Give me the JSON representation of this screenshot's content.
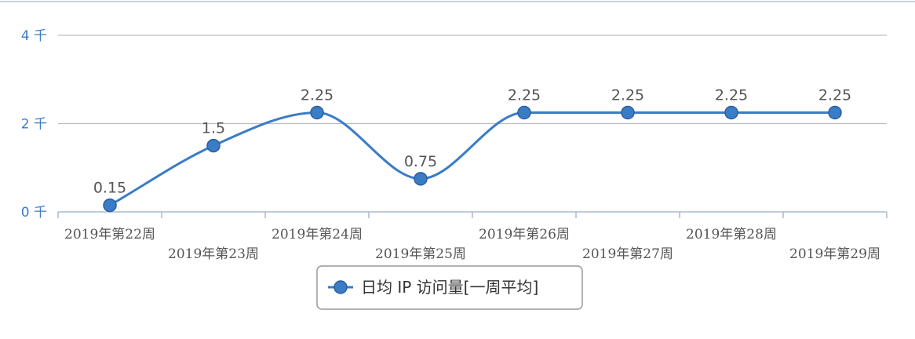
{
  "chart_data": {
    "type": "line",
    "categories": [
      "2019年第22周",
      "2019年第23周",
      "2019年第24周",
      "2019年第25周",
      "2019年第26周",
      "2019年第27周",
      "2019年第28周",
      "2019年第29周"
    ],
    "series": [
      {
        "name": "日均 IP 访问量[一周平均]",
        "values": [
          0.15,
          1.5,
          2.25,
          0.75,
          2.25,
          2.25,
          2.25,
          2.25
        ],
        "data_labels": [
          "0.15",
          "1.5",
          "2.25",
          "0.75",
          "2.25",
          "2.25",
          "2.25",
          "2.25"
        ],
        "color": "#3a7cc6"
      }
    ],
    "yticks": [
      {
        "value": 0,
        "label": "0 千"
      },
      {
        "value": 2,
        "label": "2 千"
      },
      {
        "value": 4,
        "label": "4 千"
      }
    ],
    "ylim": [
      0,
      4
    ],
    "grid": true,
    "legend_position": "bottom-center",
    "line_color": "#3a7cc6",
    "marker_color": "#3a7cc6"
  }
}
